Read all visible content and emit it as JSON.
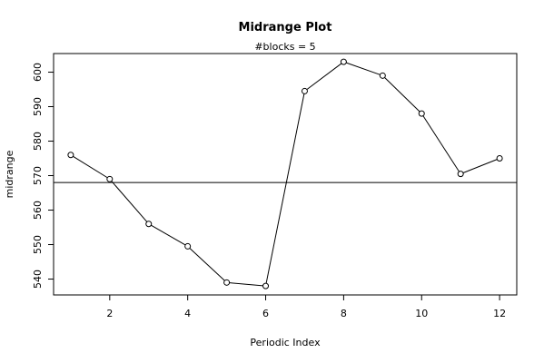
{
  "chart_data": {
    "type": "line",
    "title": "Midrange Plot",
    "subtitle": "#blocks =  5",
    "xlabel": "Periodic Index",
    "ylabel": "midrange",
    "xlim": [
      0.56,
      12.44
    ],
    "ylim": [
      535.4,
      605.4
    ],
    "x_ticks": [
      2,
      4,
      6,
      8,
      10,
      12
    ],
    "y_ticks": [
      540,
      550,
      560,
      570,
      580,
      590,
      600
    ],
    "x": [
      1,
      2,
      3,
      4,
      5,
      6,
      7,
      8,
      9,
      10,
      11,
      12
    ],
    "values": [
      576,
      569,
      556,
      549.5,
      539,
      538,
      594.5,
      603,
      599,
      588,
      570.5,
      575
    ],
    "reference_line": 568,
    "marker": "open-circle",
    "grid": false,
    "legend": "none"
  }
}
